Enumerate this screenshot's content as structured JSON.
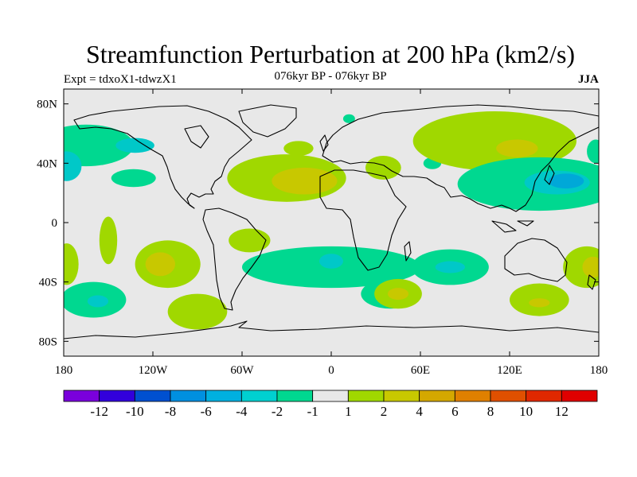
{
  "title": "Streamfunction Perturbation at 200 hPa (km2/s)",
  "experiment": "Expt = tdxoX1-tdwzX1",
  "subtitle": "076kyr BP - 076kyr BP",
  "season": "JJA",
  "map": {
    "projection": "cylindrical-equidistant",
    "lon_range": [
      -180,
      180
    ],
    "lat_range": [
      -90,
      90
    ],
    "lon_ticks": [
      {
        "value": -180,
        "label": "180"
      },
      {
        "value": -120,
        "label": "120W"
      },
      {
        "value": -60,
        "label": "60W"
      },
      {
        "value": 0,
        "label": "0"
      },
      {
        "value": 60,
        "label": "60E"
      },
      {
        "value": 120,
        "label": "120E"
      },
      {
        "value": 180,
        "label": "180"
      }
    ],
    "lat_ticks": [
      {
        "value": 80,
        "label": "80N"
      },
      {
        "value": 40,
        "label": "40N"
      },
      {
        "value": 0,
        "label": "0"
      },
      {
        "value": -40,
        "label": "40S"
      },
      {
        "value": -80,
        "label": "80S"
      }
    ],
    "colors": {
      "background": "#e8e8e8",
      "coast": "#000000",
      "pos1": "#a0d800",
      "pos2": "#c8c800",
      "pos3": "#d4a800",
      "neg1": "#00d890",
      "neg2": "#00c8c8",
      "neg3": "#00a8d8"
    },
    "anomalies": [
      {
        "lon": -165,
        "lat": 52,
        "rx": 32,
        "ry": 14,
        "level": "neg1"
      },
      {
        "lon": -132,
        "lat": 52,
        "rx": 13,
        "ry": 5,
        "level": "neg2"
      },
      {
        "lon": -178,
        "lat": 38,
        "rx": 10,
        "ry": 10,
        "level": "neg2"
      },
      {
        "lon": -133,
        "lat": 30,
        "rx": 15,
        "ry": 6,
        "level": "neg1"
      },
      {
        "lon": -30,
        "lat": 30,
        "rx": 40,
        "ry": 16,
        "level": "pos1"
      },
      {
        "lon": -18,
        "lat": 28,
        "rx": 22,
        "ry": 9,
        "level": "pos2"
      },
      {
        "lon": -22,
        "lat": 50,
        "rx": 10,
        "ry": 5,
        "level": "pos1"
      },
      {
        "lon": 12,
        "lat": 70,
        "rx": 4,
        "ry": 3,
        "level": "neg1"
      },
      {
        "lon": 35,
        "lat": 37,
        "rx": 12,
        "ry": 8,
        "level": "pos1"
      },
      {
        "lon": 68,
        "lat": 40,
        "rx": 6,
        "ry": 4,
        "level": "neg1"
      },
      {
        "lon": 110,
        "lat": 55,
        "rx": 55,
        "ry": 20,
        "level": "pos1"
      },
      {
        "lon": 125,
        "lat": 50,
        "rx": 14,
        "ry": 6,
        "level": "pos2"
      },
      {
        "lon": 140,
        "lat": 26,
        "rx": 55,
        "ry": 18,
        "level": "neg1"
      },
      {
        "lon": 152,
        "lat": 27,
        "rx": 22,
        "ry": 8,
        "level": "neg2"
      },
      {
        "lon": 158,
        "lat": 28,
        "rx": 12,
        "ry": 5,
        "level": "neg3"
      },
      {
        "lon": 178,
        "lat": 48,
        "rx": 6,
        "ry": 8,
        "level": "neg1"
      },
      {
        "lon": -150,
        "lat": -12,
        "rx": 6,
        "ry": 16,
        "level": "pos1"
      },
      {
        "lon": -110,
        "lat": -28,
        "rx": 22,
        "ry": 16,
        "level": "pos1"
      },
      {
        "lon": -115,
        "lat": -28,
        "rx": 10,
        "ry": 8,
        "level": "pos2"
      },
      {
        "lon": -90,
        "lat": -60,
        "rx": 20,
        "ry": 12,
        "level": "pos1"
      },
      {
        "lon": -160,
        "lat": -52,
        "rx": 22,
        "ry": 12,
        "level": "neg1"
      },
      {
        "lon": -157,
        "lat": -53,
        "rx": 7,
        "ry": 4,
        "level": "neg2"
      },
      {
        "lon": -178,
        "lat": -28,
        "rx": 8,
        "ry": 14,
        "level": "pos1"
      },
      {
        "lon": -55,
        "lat": -12,
        "rx": 14,
        "ry": 8,
        "level": "pos1"
      },
      {
        "lon": 0,
        "lat": -30,
        "rx": 60,
        "ry": 14,
        "level": "neg1"
      },
      {
        "lon": 40,
        "lat": -48,
        "rx": 20,
        "ry": 10,
        "level": "neg1"
      },
      {
        "lon": 0,
        "lat": -26,
        "rx": 8,
        "ry": 5,
        "level": "neg2"
      },
      {
        "lon": 45,
        "lat": -48,
        "rx": 16,
        "ry": 10,
        "level": "pos1"
      },
      {
        "lon": 45,
        "lat": -48,
        "rx": 7,
        "ry": 4,
        "level": "pos2"
      },
      {
        "lon": 80,
        "lat": -30,
        "rx": 26,
        "ry": 12,
        "level": "neg1"
      },
      {
        "lon": 80,
        "lat": -30,
        "rx": 10,
        "ry": 4,
        "level": "neg2"
      },
      {
        "lon": 140,
        "lat": -52,
        "rx": 20,
        "ry": 11,
        "level": "pos1"
      },
      {
        "lon": 140,
        "lat": -54,
        "rx": 7,
        "ry": 3,
        "level": "pos2"
      },
      {
        "lon": 172,
        "lat": -30,
        "rx": 16,
        "ry": 14,
        "level": "pos1"
      },
      {
        "lon": 176,
        "lat": -30,
        "rx": 7,
        "ry": 7,
        "level": "pos2"
      }
    ]
  },
  "colorbar": {
    "colors": [
      "#7a00dc",
      "#3200dc",
      "#0050d0",
      "#0090e0",
      "#00b0e0",
      "#00d0d0",
      "#00d890",
      "#e8e8e8",
      "#a0d800",
      "#c8c800",
      "#d4a800",
      "#e08000",
      "#e05000",
      "#e02800",
      "#e00000"
    ],
    "labels": [
      "-12",
      "-10",
      "-8",
      "-6",
      "-4",
      "-2",
      "-1",
      "1",
      "2",
      "4",
      "6",
      "8",
      "10",
      "12"
    ]
  }
}
